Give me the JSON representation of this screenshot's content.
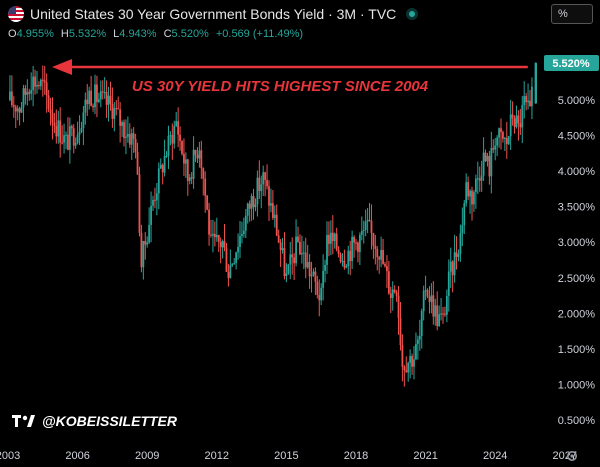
{
  "header": {
    "title": "United States 30 Year Government Bonds Yield · 3M · TVC",
    "ohlc": [
      {
        "k": "O",
        "v": "4.955%"
      },
      {
        "k": "H",
        "v": "5.532%"
      },
      {
        "k": "L",
        "v": "4.943%"
      },
      {
        "k": "C",
        "v": "5.520%"
      },
      {
        "k": "",
        "v": "+0.569 (+11.49%)"
      }
    ],
    "scale_mode": "%"
  },
  "watermark": "@KOBEISSILETTER",
  "colors": {
    "up": "#26a69a",
    "down": "#ef5350",
    "annotation": "#e8353b",
    "last_price_bg": "#26a69a"
  },
  "icons": [
    "us-flag-icon",
    "live-dot-icon",
    "tradingview-logo-icon",
    "gear-icon"
  ],
  "chart_data": {
    "type": "candlestick",
    "title": "United States 30 Year Government Bonds Yield",
    "interval": "3M",
    "annotation": "US 30Y YIELD HITS HIGHEST SINCE 2004",
    "last_price_label": "5.520%",
    "y_ticks": [
      "5.000%",
      "4.500%",
      "4.000%",
      "3.500%",
      "3.000%",
      "2.500%",
      "2.000%",
      "1.500%",
      "1.000%",
      "0.500%"
    ],
    "y_tick_values": [
      5.0,
      4.5,
      4.0,
      3.5,
      3.0,
      2.5,
      2.0,
      1.5,
      1.0,
      0.5
    ],
    "x_ticks": [
      "2003",
      "2006",
      "2009",
      "2012",
      "2015",
      "2018",
      "2021",
      "2024",
      "2027"
    ],
    "x_tick_values": [
      2003,
      2006,
      2009,
      2012,
      2015,
      2018,
      2021,
      2024,
      2027
    ],
    "ylim": [
      0.2,
      5.72
    ],
    "xlim": [
      2003.0,
      2028.2
    ],
    "close_path": [
      [
        2003.0,
        5.0
      ],
      [
        2003.5,
        4.9
      ],
      [
        2004.0,
        5.3
      ],
      [
        2004.5,
        5.2
      ],
      [
        2005.0,
        4.7
      ],
      [
        2005.5,
        4.4
      ],
      [
        2006.0,
        4.6
      ],
      [
        2006.5,
        5.1
      ],
      [
        2007.0,
        5.0
      ],
      [
        2007.5,
        4.9
      ],
      [
        2008.0,
        4.6
      ],
      [
        2008.5,
        4.4
      ],
      [
        2008.75,
        2.7
      ],
      [
        2009.25,
        3.6
      ],
      [
        2009.75,
        4.2
      ],
      [
        2010.25,
        4.7
      ],
      [
        2010.75,
        3.9
      ],
      [
        2011.25,
        4.4
      ],
      [
        2011.75,
        2.95
      ],
      [
        2012.25,
        3.0
      ],
      [
        2012.5,
        2.6
      ],
      [
        2013.0,
        3.1
      ],
      [
        2013.5,
        3.6
      ],
      [
        2014.0,
        3.9
      ],
      [
        2014.5,
        3.3
      ],
      [
        2015.0,
        2.5
      ],
      [
        2015.5,
        3.0
      ],
      [
        2016.0,
        2.6
      ],
      [
        2016.5,
        2.2
      ],
      [
        2016.75,
        3.1
      ],
      [
        2017.5,
        2.8
      ],
      [
        2018.0,
        3.0
      ],
      [
        2018.5,
        3.2
      ],
      [
        2019.0,
        2.9
      ],
      [
        2019.5,
        2.3
      ],
      [
        2019.75,
        2.4
      ],
      [
        2020.0,
        1.3
      ],
      [
        2020.5,
        1.4
      ],
      [
        2020.75,
        1.65
      ],
      [
        2021.0,
        2.4
      ],
      [
        2021.5,
        1.95
      ],
      [
        2021.75,
        1.9
      ],
      [
        2022.0,
        2.45
      ],
      [
        2022.5,
        3.1
      ],
      [
        2022.75,
        3.8
      ],
      [
        2023.0,
        3.65
      ],
      [
        2023.5,
        4.2
      ],
      [
        2023.75,
        4.05
      ],
      [
        2024.0,
        4.5
      ],
      [
        2024.5,
        4.4
      ],
      [
        2024.75,
        4.8
      ],
      [
        2025.0,
        4.6
      ],
      [
        2025.25,
        4.95
      ],
      [
        2025.5,
        4.78
      ],
      [
        2025.75,
        5.52
      ]
    ]
  }
}
